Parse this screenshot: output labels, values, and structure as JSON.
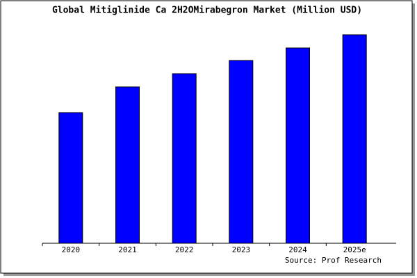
{
  "chart_data": {
    "type": "bar",
    "title": "Global Mitiglinide Ca 2H2OMirabegron Market (Million USD)",
    "categories": [
      "2020",
      "2021",
      "2022",
      "2023",
      "2024",
      "2025e"
    ],
    "values": [
      188,
      225,
      244,
      263,
      281,
      300
    ],
    "color": "#0000ff",
    "ylim": [
      0,
      302
    ],
    "source": "Source: Prof Research"
  }
}
